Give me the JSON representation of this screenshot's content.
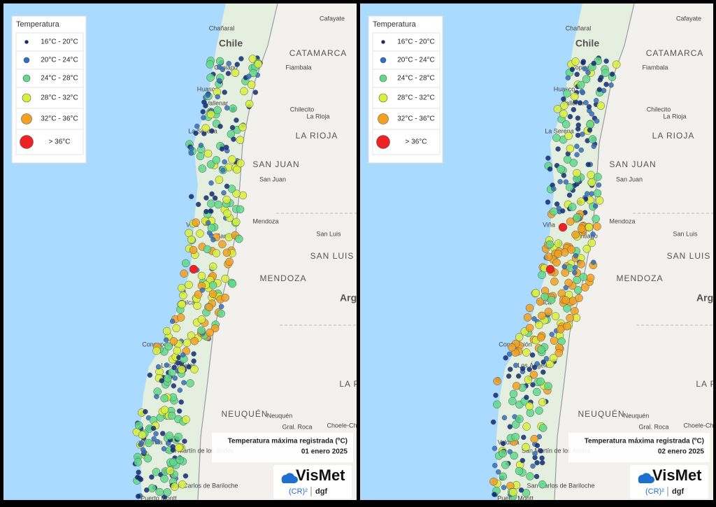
{
  "panels": [
    {
      "date": "01 enero 2025"
    },
    {
      "date": "02 enero 2025"
    }
  ],
  "caption": "Temperatura máxima registrada (ºC)",
  "legend": {
    "title": "Temperatura",
    "items": [
      {
        "label": "16°C - 20°C",
        "color": "#0b2a7a"
      },
      {
        "label": "20°C - 24°C",
        "color": "#2f6fbf"
      },
      {
        "label": "24°C - 28°C",
        "color": "#5fd98a"
      },
      {
        "label": "28°C - 32°C",
        "color": "#d9f03a"
      },
      {
        "label": "32°C - 36°C",
        "color": "#f2a020"
      },
      {
        "label": "> 36°C",
        "color": "#ee2222"
      }
    ]
  },
  "map_labels": [
    "Chile",
    "CATAMARCA",
    "Copiapó",
    "Fiambala",
    "Huasco",
    "Vallenar",
    "Chilecito",
    "La Rioja",
    "LA RIOJA",
    "La Serena",
    "SAN JUAN",
    "San Juan",
    "Viña",
    "Santiago",
    "Mendoza",
    "San Luis",
    "SAN LUIS",
    "MENDOZA",
    "Arge",
    "Talca",
    "Concepción",
    "Los Ángeles",
    "LA P",
    "NEUQUÉN",
    "Neuquén",
    "Gral. Roca",
    "Choele-Choel",
    "Valdivia",
    "San Martín de los Andes",
    "San Carlos de Bariloche",
    "Puerto Montt",
    "Chañaral",
    "Cafayate"
  ],
  "logo": {
    "name": "VisMet",
    "org": "(CR)²",
    "dept": "dgf"
  }
}
